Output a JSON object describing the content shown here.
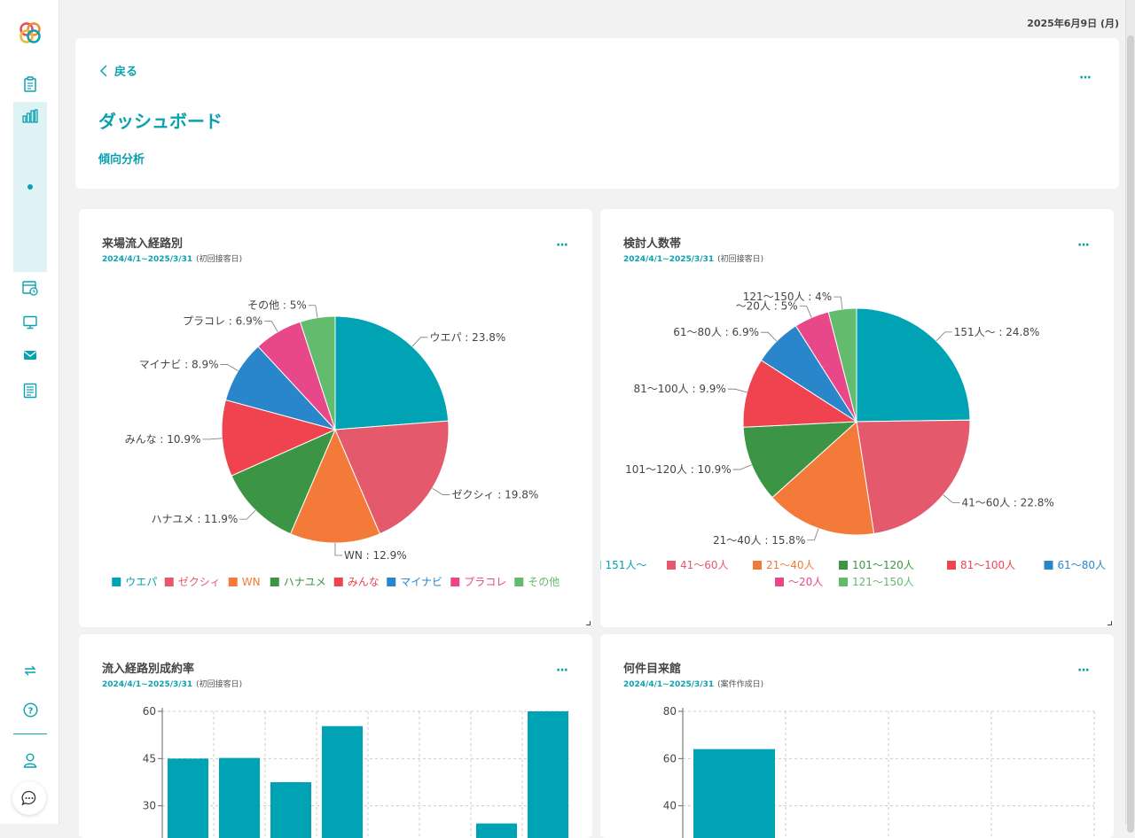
{
  "header": {
    "date": "2025年6月9日 (月)",
    "back_label": "戻る",
    "title": "ダッシュボード",
    "subtitle": "傾向分析",
    "more": "···"
  },
  "sidebar": {
    "items": [
      {
        "icon": "clipboard-icon"
      },
      {
        "icon": "bar-chart-icon",
        "active": true
      },
      {
        "icon": "calendar-clock-icon"
      },
      {
        "icon": "monitor-icon"
      },
      {
        "icon": "mail-icon"
      },
      {
        "icon": "document-icon"
      },
      {
        "icon": "sync-icon"
      },
      {
        "icon": "help-icon"
      },
      {
        "icon": "user-icon"
      },
      {
        "icon": "chat-icon"
      }
    ]
  },
  "colors": {
    "accent": "#0aa1b1"
  },
  "cards": [
    {
      "title": "来場流入経路別",
      "period": "2024/4/1~2025/3/31",
      "basis": "(初回接客日)"
    },
    {
      "title": "検討人数帯",
      "period": "2024/4/1~2025/3/31",
      "basis": "(初回接客日)"
    },
    {
      "title": "流入経路別成約率",
      "period": "2024/4/1~2025/3/31",
      "basis": "(初回接客日)"
    },
    {
      "title": "何件目来館",
      "period": "2024/4/1~2025/3/31",
      "basis": "(案件作成日)"
    }
  ],
  "chart_data": [
    {
      "type": "pie",
      "title": "来場流入経路別",
      "legend_position": "bottom",
      "slices": [
        {
          "label": "ウエパ",
          "value": 23.8,
          "text": "ウエパ : 23.8%",
          "color": "#00a3b4"
        },
        {
          "label": "ゼクシィ",
          "value": 19.8,
          "text": "ゼクシィ : 19.8%",
          "color": "#e45a6c"
        },
        {
          "label": "WN",
          "value": 12.9,
          "text": "WN : 12.9%",
          "color": "#f47a3a"
        },
        {
          "label": "ハナユメ",
          "value": 11.9,
          "text": "ハナユメ : 11.9%",
          "color": "#3b9545"
        },
        {
          "label": "みんな",
          "value": 10.9,
          "text": "みんな : 10.9%",
          "color": "#ef4350"
        },
        {
          "label": "マイナビ",
          "value": 8.9,
          "text": "マイナビ : 8.9%",
          "color": "#2a86cb"
        },
        {
          "label": "プラコレ",
          "value": 6.9,
          "text": "プラコレ : 6.9%",
          "color": "#e8488a"
        },
        {
          "label": "その他",
          "value": 5,
          "text": "その他 : 5%",
          "color": "#63bb6e"
        }
      ]
    },
    {
      "type": "pie",
      "title": "検討人数帯",
      "legend_position": "bottom",
      "slices": [
        {
          "label": "151人〜",
          "value": 24.8,
          "text": "151人〜 : 24.8%",
          "color": "#00a3b4"
        },
        {
          "label": "41〜60人",
          "value": 22.8,
          "text": "41〜60人 : 22.8%",
          "color": "#e45a6c"
        },
        {
          "label": "21〜40人",
          "value": 15.8,
          "text": "21〜40人 : 15.8%",
          "color": "#f47a3a"
        },
        {
          "label": "101〜120人",
          "value": 10.9,
          "text": "101〜120人 : 10.9%",
          "color": "#3b9545"
        },
        {
          "label": "81〜100人",
          "value": 9.9,
          "text": "81〜100人 : 9.9%",
          "color": "#ef4350"
        },
        {
          "label": "61〜80人",
          "value": 6.9,
          "text": "61〜80人 : 6.9%",
          "color": "#2a86cb"
        },
        {
          "label": "〜20人",
          "value": 5,
          "text": "〜20人 : 5%",
          "color": "#e8488a"
        },
        {
          "label": "121〜150人",
          "value": 4,
          "text": "121〜150人 : 4%",
          "color": "#63bb6e"
        }
      ]
    },
    {
      "type": "bar",
      "title": "流入経路別成約率",
      "y_ticks": [
        30,
        45,
        60
      ],
      "ylim": [
        20,
        60
      ],
      "values": [
        45,
        45.2,
        37.5,
        55.3,
        null,
        null,
        24.4,
        60
      ],
      "color": "#00a3b4",
      "grid": true
    },
    {
      "type": "bar",
      "title": "何件目来館",
      "y_ticks": [
        40,
        60,
        80
      ],
      "ylim": [
        30,
        80
      ],
      "values": [
        64,
        null,
        null,
        null
      ],
      "color": "#00a3b4",
      "grid": true
    }
  ]
}
